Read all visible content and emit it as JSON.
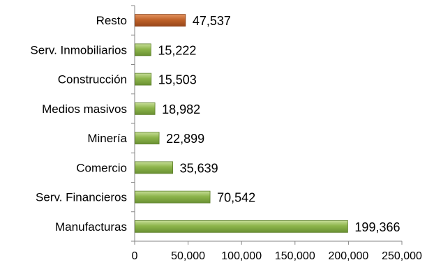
{
  "chart_data": {
    "type": "bar",
    "orientation": "horizontal",
    "categories": [
      "Resto",
      "Serv. Inmobiliarios",
      "Construcción",
      "Medios masivos",
      "Minería",
      "Comercio",
      "Serv. Financieros",
      "Manufacturas"
    ],
    "values": [
      47537,
      15222,
      15503,
      18982,
      22899,
      35639,
      70542,
      199366
    ],
    "value_labels": [
      "47,537",
      "15,222",
      "15,503",
      "18,982",
      "22,899",
      "35,639",
      "70,542",
      "199,366"
    ],
    "bar_colors": [
      "#C0632A",
      "#8DB54B",
      "#8DB54B",
      "#8DB54B",
      "#8DB54B",
      "#8DB54B",
      "#8DB54B",
      "#8DB54B"
    ],
    "highlight_color": "#C0632A",
    "base_color": "#8DB54B",
    "xlim": [
      0,
      250000
    ],
    "x_ticks": [
      0,
      50000,
      100000,
      150000,
      200000,
      250000
    ],
    "x_tick_labels": [
      "0",
      "50,000",
      "100,000",
      "150,000",
      "200,000",
      "250,000"
    ],
    "grid": false,
    "legend": "none",
    "title": "",
    "xlabel": "",
    "ylabel": ""
  }
}
